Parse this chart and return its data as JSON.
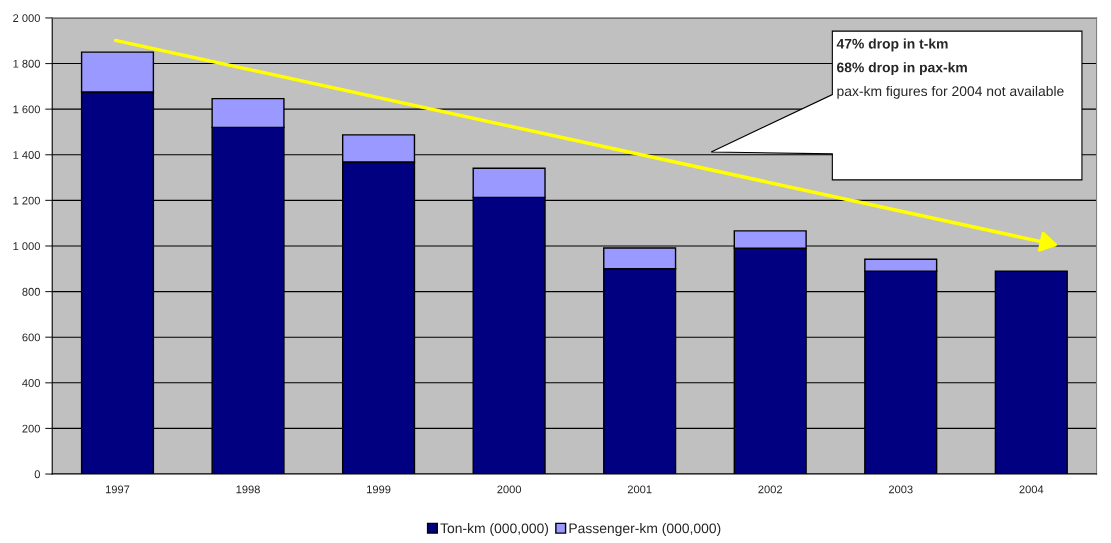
{
  "chart_data": {
    "type": "bar",
    "stacked": true,
    "categories": [
      "1997",
      "1998",
      "1999",
      "2000",
      "2001",
      "2002",
      "2003",
      "2004"
    ],
    "series": [
      {
        "name": "Ton-km (000,000)",
        "color": "#000080",
        "values": [
          1675,
          1520,
          1368,
          1213,
          900,
          990,
          889,
          889
        ]
      },
      {
        "name": "Passenger-km (000,000)",
        "color": "#9999ff",
        "values": [
          175,
          126,
          119,
          128,
          91,
          76,
          53,
          null
        ]
      }
    ],
    "ylim": [
      0,
      2000
    ],
    "yticks": [
      0,
      200,
      400,
      600,
      800,
      {
        "value": 1000,
        "label": "1 000"
      },
      {
        "value": 1200,
        "label": "1 200"
      },
      {
        "value": 1400,
        "label": "1 400"
      },
      {
        "value": 1600,
        "label": "1 600"
      },
      {
        "value": 1800,
        "label": "1 800"
      },
      {
        "value": 2000,
        "label": "2 000"
      }
    ],
    "grid": "y",
    "legend": "bottom",
    "annotations": [
      "47% drop in t-km",
      "68% drop in pax-km",
      "pax-km figures for 2004 not available"
    ]
  }
}
